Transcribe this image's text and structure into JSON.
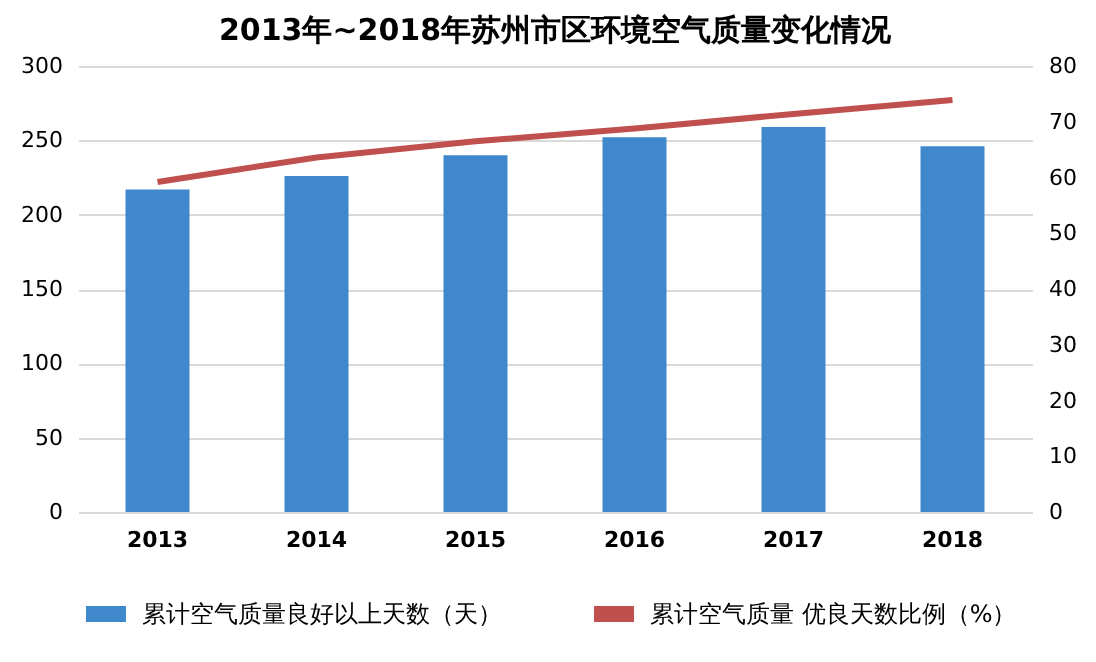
{
  "chart_data": {
    "type": "bar",
    "title": "2013年~2018年苏州市区环境空气质量变化情况",
    "categories": [
      "2013",
      "2014",
      "2015",
      "2016",
      "2017",
      "2018"
    ],
    "series": [
      {
        "name": "累计空气质量良好以上天数（天）",
        "color": "#3f88cc",
        "values": [
          217,
          226,
          240,
          252,
          259,
          246
        ]
      },
      {
        "name": "累计空气质量 优良天数比例（%）",
        "type": "line",
        "axis": "y2",
        "color": "#c0504d",
        "values": [
          59.2,
          63.6,
          66.5,
          68.8,
          71.4,
          73.9
        ]
      }
    ],
    "ylim": [
      0,
      300
    ],
    "yticks": [
      0,
      50,
      100,
      150,
      200,
      250,
      300
    ],
    "y2lim": [
      0,
      80
    ],
    "y2ticks": [
      0,
      10,
      20,
      30,
      40,
      50,
      60,
      70,
      80
    ],
    "grid": "y",
    "legend": "bottom",
    "line_style": "solid",
    "marker": "none"
  }
}
